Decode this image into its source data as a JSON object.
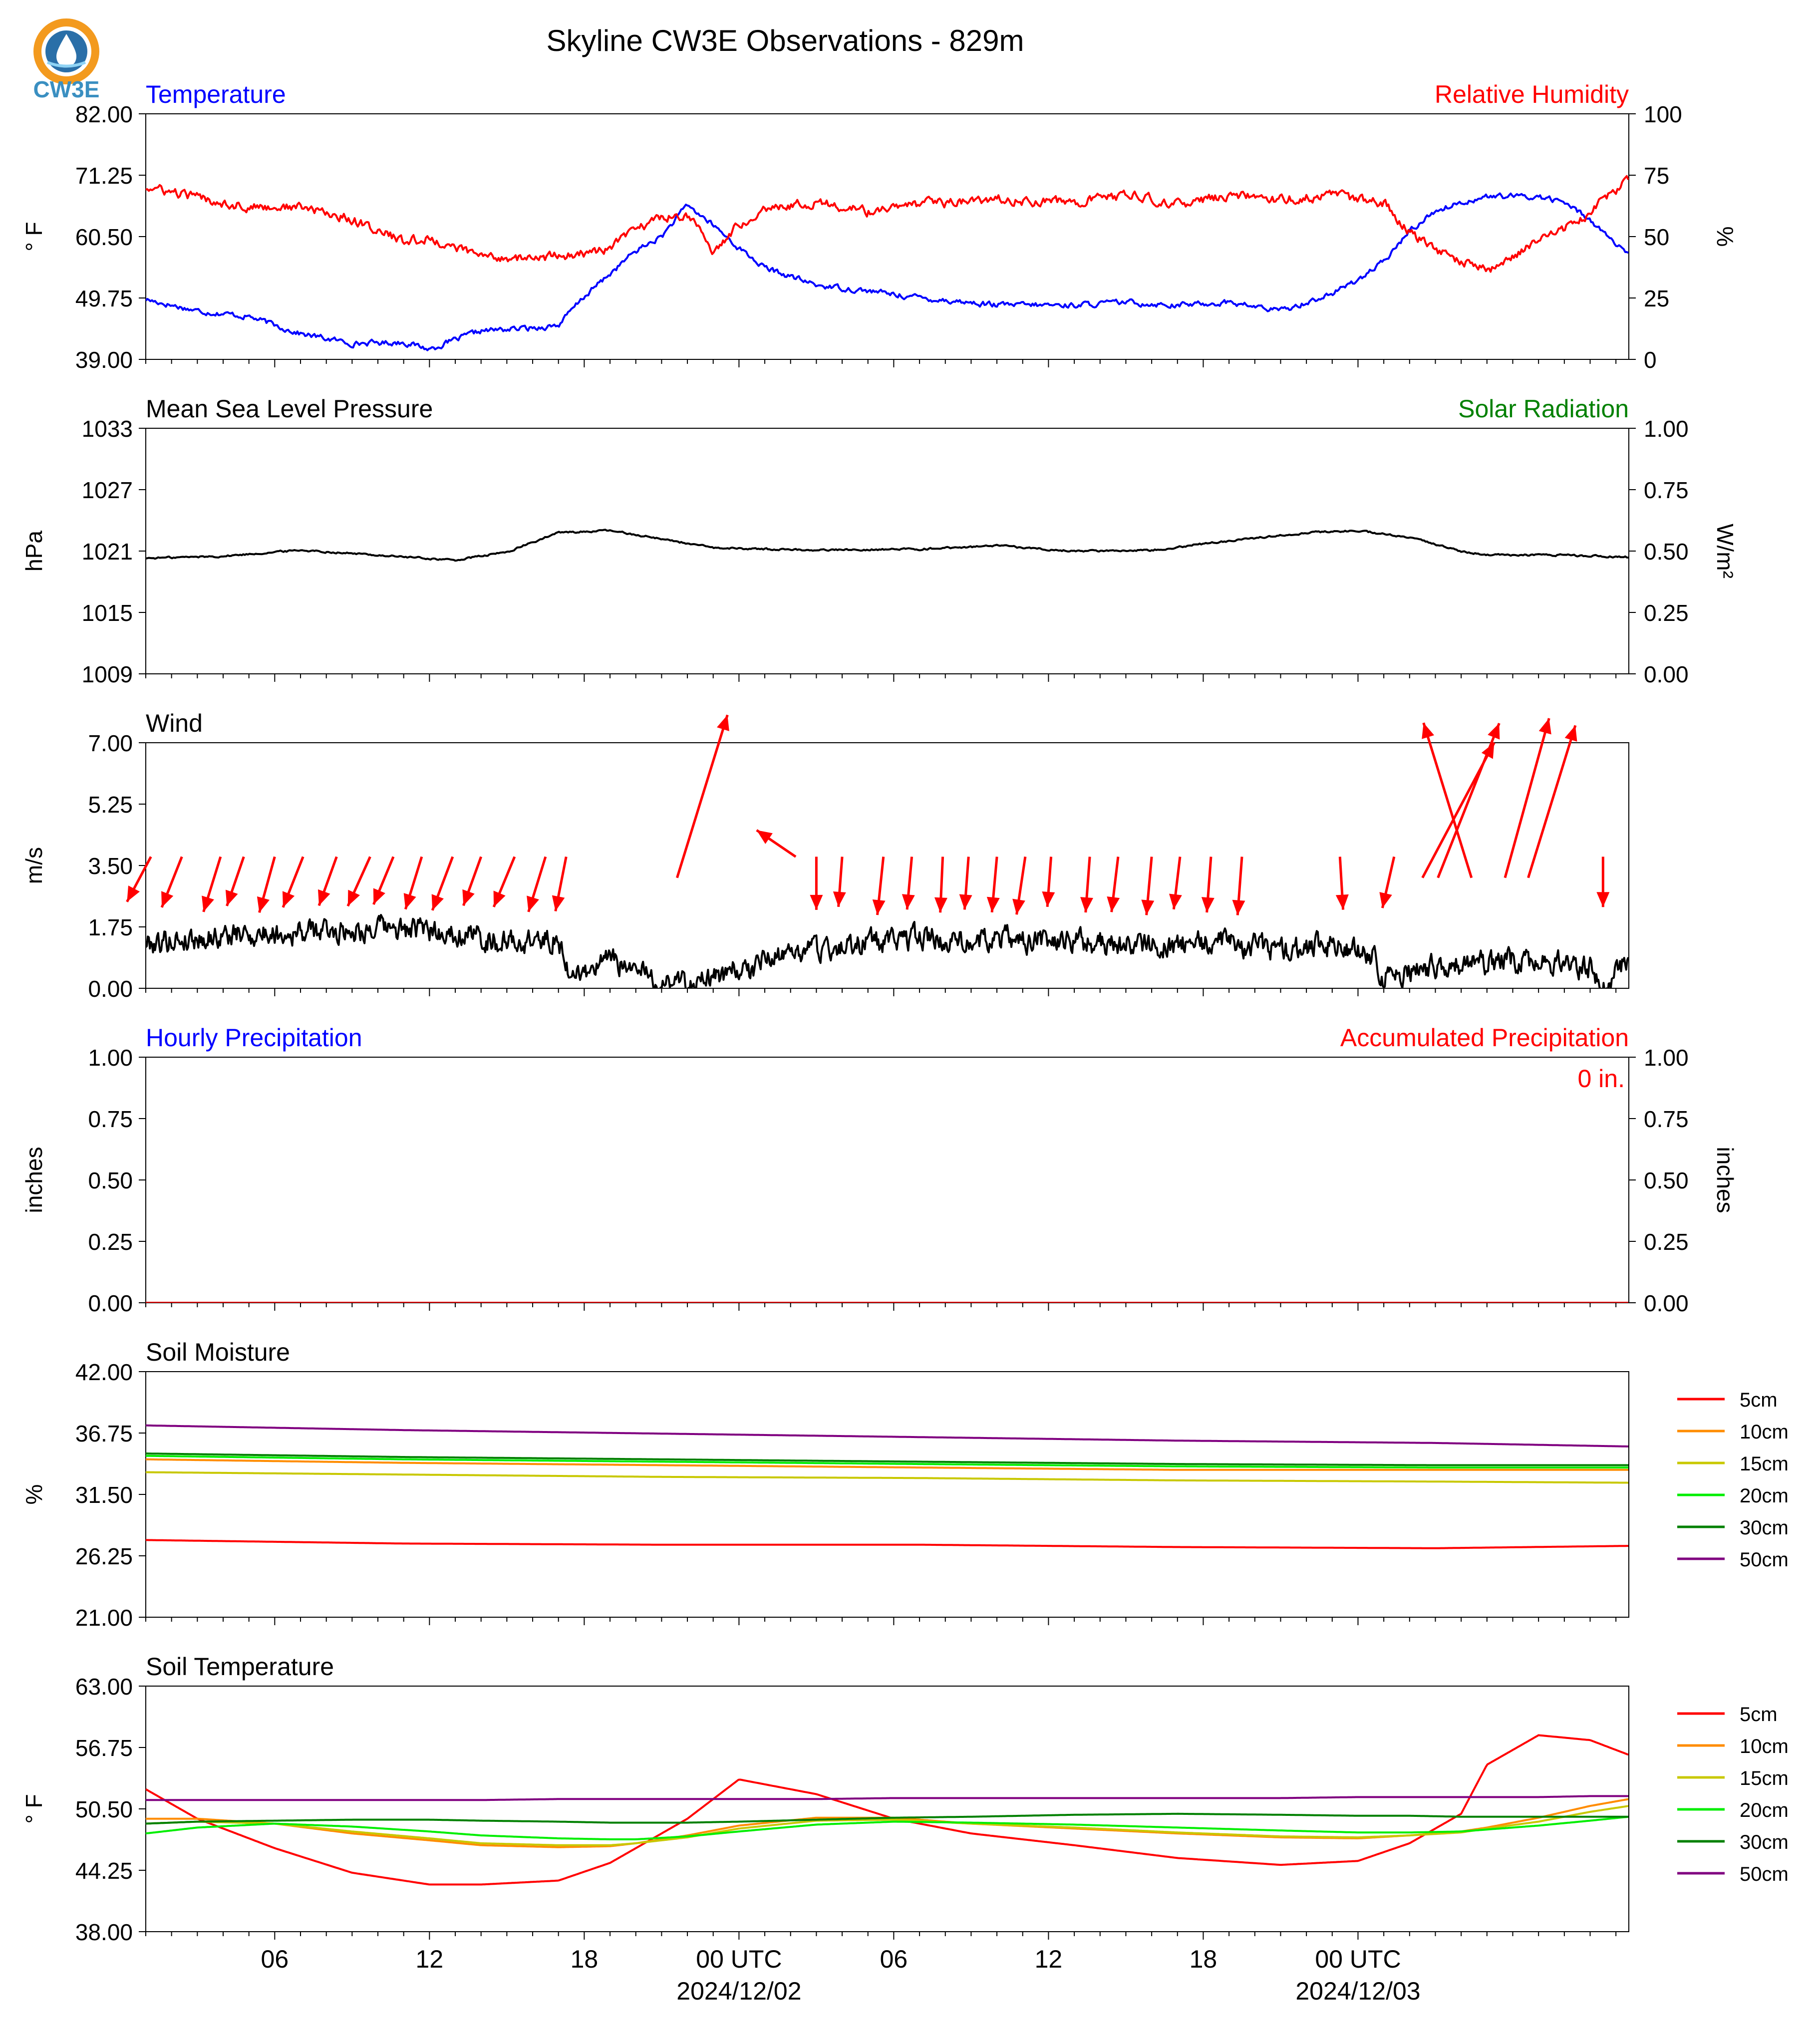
{
  "title": "Skyline CW3E Observations - 829m",
  "logo": {
    "text": "CW3E",
    "ring_color": "#f39a1e",
    "inner_color": "#2a6fa8",
    "text_color": "#3a8fc1"
  },
  "time_axis": {
    "ticks": [
      "06",
      "12",
      "18",
      "00 UTC",
      "06",
      "12",
      "18",
      "00 UTC"
    ],
    "dates": [
      "2024/12/02",
      "2024/12/03"
    ]
  },
  "chart_data": [
    {
      "type": "line",
      "title_left": "Temperature",
      "title_left_color": "#0000ff",
      "title_right": "Relative Humidity",
      "title_right_color": "#ff0000",
      "ylabel_left": "° F",
      "ylabel_right": "%",
      "ylim_left": [
        39,
        82
      ],
      "ylim_right": [
        0,
        100
      ],
      "yticks_left": [
        "82.00",
        "71.25",
        "60.50",
        "49.75",
        "39.00"
      ],
      "yticks_right": [
        "100",
        "75",
        "50",
        "25",
        "0"
      ],
      "x_hours": [
        0,
        2,
        4,
        6,
        8,
        10,
        11,
        13,
        15,
        16,
        17,
        18,
        19,
        20,
        21,
        22,
        23,
        24,
        26,
        28,
        30,
        33,
        36,
        38,
        40,
        42,
        44,
        46,
        47,
        48,
        49,
        50,
        51,
        52,
        53,
        54,
        55,
        56,
        57.5
      ],
      "series": [
        {
          "name": "Temperature",
          "color": "#0000ff",
          "axis": "left",
          "values": [
            49.5,
            47.5,
            46.5,
            43.5,
            41.8,
            42.0,
            40.8,
            44.0,
            44.5,
            45.0,
            50.0,
            54.0,
            58.0,
            60.5,
            66.0,
            62.5,
            58.5,
            55.0,
            52.0,
            51.0,
            49.8,
            48.5,
            48.5,
            49.0,
            48.5,
            49.0,
            47.5,
            50.5,
            53.0,
            56.0,
            61.5,
            65.0,
            66.5,
            67.5,
            67.5,
            67.5,
            66.5,
            63.5,
            57.0
          ]
        },
        {
          "name": "Relative Humidity",
          "color": "#ff0000",
          "axis": "right",
          "values": [
            70,
            66,
            62,
            62,
            57,
            48,
            49,
            42,
            41,
            42,
            43,
            45,
            53,
            58,
            59,
            44,
            55,
            62,
            64,
            60,
            63,
            65,
            64,
            67,
            63,
            67,
            65,
            67,
            65,
            64,
            52,
            45,
            40,
            36,
            42,
            48,
            53,
            60,
            74
          ]
        }
      ]
    },
    {
      "type": "line",
      "title_left": "Mean Sea Level Pressure",
      "title_left_color": "#000000",
      "title_right": "Solar Radiation",
      "title_right_color": "#008000",
      "ylabel_left": "hPa",
      "ylabel_right": "W/m²",
      "ylim_left": [
        1009,
        1033
      ],
      "ylim_right": [
        0,
        1
      ],
      "yticks_left": [
        "1033",
        "1027",
        "1021",
        "1015",
        "1009"
      ],
      "yticks_right": [
        "1.00",
        "0.75",
        "0.50",
        "0.25",
        "0.00"
      ],
      "x_hours": [
        0,
        3,
        6,
        9,
        12,
        14,
        16,
        18,
        20,
        22,
        26,
        30,
        33,
        36,
        39,
        42,
        45,
        47,
        49,
        51,
        52,
        55,
        57.5
      ],
      "series": [
        {
          "name": "Mean Sea Level Pressure",
          "color": "#000000",
          "axis": "left",
          "values": [
            1020.3,
            1020.5,
            1021.1,
            1020.6,
            1020.1,
            1020.9,
            1022.8,
            1023.0,
            1022.2,
            1021.3,
            1021.1,
            1021.2,
            1021.5,
            1021.0,
            1021.1,
            1022.0,
            1022.8,
            1023.0,
            1022.3,
            1021.0,
            1020.6,
            1020.6,
            1020.4
          ]
        }
      ]
    },
    {
      "type": "line",
      "title_left": "Wind",
      "title_left_color": "#000000",
      "ylabel_left": "m/s",
      "ylim_left": [
        0,
        7
      ],
      "yticks_left": [
        "7.00",
        "5.25",
        "3.50",
        "1.75",
        "0.00"
      ],
      "x_hours": [
        0,
        3,
        6,
        9,
        12,
        14,
        16,
        16.5,
        18,
        20,
        22,
        23,
        23.5,
        24,
        27,
        30,
        33,
        36,
        39,
        42,
        44,
        46,
        47.5,
        48,
        50,
        53,
        56,
        56.5,
        57.5
      ],
      "series": [
        {
          "name": "Wind",
          "color": "#000000",
          "axis": "left",
          "values": [
            1.3,
            1.5,
            1.6,
            1.7,
            1.6,
            1.3,
            1.4,
            0.3,
            0.8,
            0.2,
            0.2,
            0.6,
            0.4,
            0.9,
            1.2,
            1.4,
            1.4,
            1.3,
            1.2,
            1.3,
            1.1,
            1.2,
            1.0,
            0.3,
            0.6,
            0.8,
            0.6,
            0.05,
            0.8
          ]
        }
      ],
      "wind_vectors_hours": [
        0.2,
        1.4,
        2.9,
        3.8,
        5.0,
        6.1,
        7.4,
        8.7,
        9.6,
        10.7,
        11.9,
        13.0,
        14.3,
        15.5,
        16.3,
        20.6,
        25.2,
        26.0,
        27.0,
        28.6,
        29.7,
        30.9,
        31.9,
        33.0,
        34.1,
        35.1,
        36.6,
        37.7,
        39.0,
        40.1,
        41.3,
        42.5,
        46.3,
        48.4,
        49.5,
        50.1,
        51.4,
        52.7,
        53.6,
        56.5
      ],
      "wind_vectors_speed": [
        1.9,
        2.0,
        2.1,
        1.9,
        2.1,
        2.0,
        1.9,
        2.0,
        1.9,
        2.0,
        2.1,
        1.9,
        2.0,
        2.1,
        2.0,
        6.2,
        1.9,
        1.9,
        1.8,
        2.1,
        1.9,
        2.0,
        1.9,
        2.0,
        2.1,
        1.8,
        2.0,
        2.0,
        2.1,
        1.9,
        2.0,
        2.1,
        1.9,
        1.9,
        5.7,
        6.1,
        5.9,
        6.0,
        5.8,
        1.8
      ],
      "wind_vectors_dir": [
        212,
        205,
        200,
        202,
        198,
        205,
        203,
        208,
        206,
        200,
        204,
        203,
        206,
        200,
        193,
        20,
        300,
        180,
        185,
        187,
        186,
        183,
        185,
        186,
        190,
        185,
        185,
        188,
        186,
        188,
        185,
        185,
        176,
        195,
        32,
        25,
        340,
        18,
        20,
        180
      ]
    },
    {
      "type": "line",
      "title_left": "Hourly Precipitation",
      "title_left_color": "#0000ff",
      "title_right": "Accumulated Precipitation",
      "title_right_color": "#ff0000",
      "ylabel_left": "inches",
      "ylabel_right": "inches",
      "ylim_left": [
        0,
        1
      ],
      "ylim_right": [
        0,
        1
      ],
      "yticks_left": [
        "1.00",
        "0.75",
        "0.50",
        "0.25",
        "0.00"
      ],
      "yticks_right": [
        "1.00",
        "0.75",
        "0.50",
        "0.25",
        "0.00"
      ],
      "annotation": "0 in.",
      "x_hours": [
        0,
        57.5
      ],
      "series": [
        {
          "name": "Accumulated Precipitation",
          "color": "#ff0000",
          "axis": "left",
          "values": [
            0,
            0
          ]
        }
      ]
    },
    {
      "type": "line",
      "title_left": "Soil Moisture",
      "title_left_color": "#000000",
      "ylabel_left": "%",
      "ylim_left": [
        21,
        42
      ],
      "yticks_left": [
        "42.00",
        "36.75",
        "31.50",
        "26.25",
        "21.00"
      ],
      "legend": "right",
      "x_hours": [
        0,
        10,
        20,
        30,
        40,
        50,
        57.5
      ],
      "series": [
        {
          "name": "5cm",
          "color": "#ff0000",
          "values": [
            27.6,
            27.3,
            27.2,
            27.2,
            27.0,
            26.9,
            27.1
          ]
        },
        {
          "name": "10cm",
          "color": "#ff8c00",
          "values": [
            34.5,
            34.2,
            34.0,
            33.8,
            33.6,
            33.6,
            33.6
          ]
        },
        {
          "name": "15cm",
          "color": "#c8c800",
          "values": [
            33.4,
            33.2,
            33.0,
            32.9,
            32.7,
            32.6,
            32.5
          ]
        },
        {
          "name": "20cm",
          "color": "#00ee00",
          "values": [
            34.8,
            34.5,
            34.3,
            34.1,
            33.9,
            33.8,
            33.8
          ]
        },
        {
          "name": "30cm",
          "color": "#008000",
          "values": [
            35.0,
            34.7,
            34.5,
            34.3,
            34.1,
            34.0,
            34.0
          ]
        },
        {
          "name": "50cm",
          "color": "#800080",
          "values": [
            37.4,
            37.0,
            36.7,
            36.4,
            36.1,
            35.9,
            35.6
          ]
        }
      ]
    },
    {
      "type": "line",
      "title_left": "Soil Temperature",
      "title_left_color": "#000000",
      "ylabel_left": "° F",
      "ylim_left": [
        38,
        63
      ],
      "yticks_left": [
        "63.00",
        "56.75",
        "50.50",
        "44.25",
        "38.00"
      ],
      "legend": "right",
      "x_hours": [
        0,
        2,
        5,
        8,
        11,
        13,
        16,
        18,
        19,
        21,
        23,
        26,
        29,
        32,
        36,
        40,
        44,
        47,
        49,
        51,
        52,
        54,
        56,
        57.5
      ],
      "series": [
        {
          "name": "5cm",
          "color": "#ff0000",
          "values": [
            52.5,
            49.5,
            46.5,
            44.0,
            42.8,
            42.8,
            43.2,
            45.0,
            46.5,
            49.5,
            53.5,
            52.0,
            49.5,
            48.0,
            46.8,
            45.5,
            44.8,
            45.2,
            47.0,
            50.0,
            55.0,
            58.0,
            57.5,
            56.0
          ]
        },
        {
          "name": "10cm",
          "color": "#ff8c00",
          "values": [
            49.5,
            49.5,
            49.0,
            48.0,
            47.3,
            46.8,
            46.6,
            46.7,
            47.0,
            47.8,
            48.8,
            49.6,
            49.6,
            49.0,
            48.5,
            48.0,
            47.6,
            47.5,
            47.8,
            48.2,
            48.6,
            49.6,
            50.8,
            51.5
          ]
        },
        {
          "name": "15cm",
          "color": "#c8c800",
          "values": [
            49.0,
            49.2,
            49.0,
            48.2,
            47.5,
            47.0,
            46.8,
            46.8,
            47.0,
            47.6,
            48.5,
            49.3,
            49.4,
            49.0,
            48.6,
            48.1,
            47.7,
            47.6,
            47.8,
            48.1,
            48.5,
            49.2,
            50.2,
            50.8
          ]
        },
        {
          "name": "20cm",
          "color": "#00ee00",
          "values": [
            48.0,
            48.6,
            49.0,
            48.7,
            48.2,
            47.8,
            47.5,
            47.4,
            47.4,
            47.7,
            48.2,
            48.9,
            49.2,
            49.1,
            48.9,
            48.6,
            48.3,
            48.1,
            48.1,
            48.2,
            48.4,
            48.8,
            49.3,
            49.7
          ]
        },
        {
          "name": "30cm",
          "color": "#008000",
          "values": [
            49.0,
            49.2,
            49.3,
            49.4,
            49.4,
            49.3,
            49.2,
            49.1,
            49.1,
            49.1,
            49.2,
            49.4,
            49.6,
            49.7,
            49.9,
            50.0,
            49.9,
            49.8,
            49.8,
            49.7,
            49.7,
            49.7,
            49.7,
            49.7
          ]
        },
        {
          "name": "50cm",
          "color": "#800080",
          "values": [
            51.4,
            51.4,
            51.4,
            51.4,
            51.4,
            51.4,
            51.5,
            51.5,
            51.5,
            51.5,
            51.5,
            51.5,
            51.6,
            51.6,
            51.6,
            51.6,
            51.6,
            51.7,
            51.7,
            51.7,
            51.7,
            51.7,
            51.8,
            51.8
          ]
        }
      ]
    }
  ]
}
